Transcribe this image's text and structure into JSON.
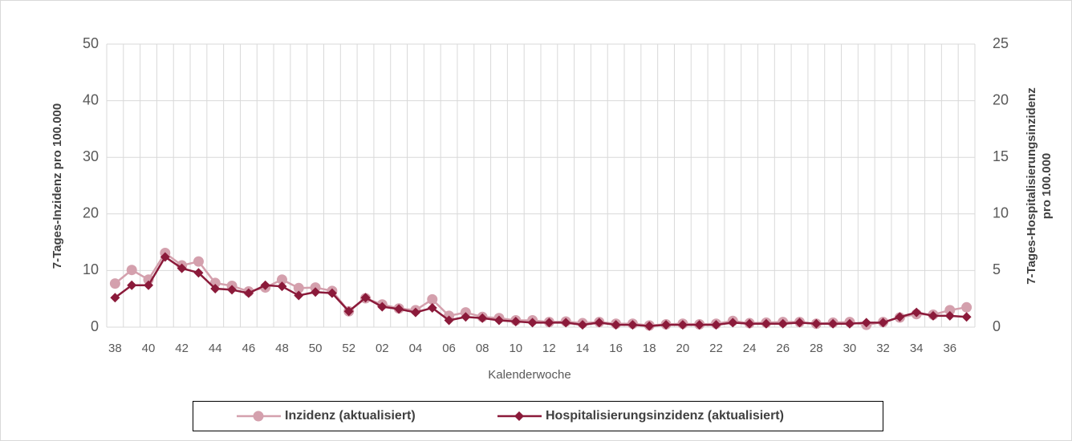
{
  "chart_data": {
    "type": "line",
    "xlabel": "Kalenderwoche",
    "ylabel": "7-Tages-Inzidenz pro 100.000",
    "y2label": [
      "7-Tages-Hospitalisierungsinzidenz",
      "pro 100.000"
    ],
    "categories": [
      "38",
      null,
      "40",
      null,
      "42",
      null,
      "44",
      null,
      "46",
      null,
      "48",
      null,
      "50",
      null,
      "52",
      null,
      "02",
      null,
      "04",
      null,
      "06",
      null,
      "08",
      null,
      "10",
      null,
      "12",
      null,
      "14",
      null,
      "16",
      null,
      "18",
      null,
      "20",
      null,
      "22",
      null,
      "24",
      null,
      "26",
      null,
      "28",
      null,
      "30",
      null,
      "32",
      null,
      "34",
      null,
      "36",
      null
    ],
    "series": [
      {
        "name": "Inzidenz (aktualisiert)",
        "color": "#d4a0ad",
        "marker": "circle",
        "values": [
          7.7,
          10.1,
          8.4,
          13.1,
          10.9,
          11.6,
          7.8,
          7.3,
          6.3,
          7.0,
          8.4,
          6.9,
          7.0,
          6.4,
          2.8,
          5.1,
          4.0,
          3.3,
          3.0,
          4.9,
          2.0,
          2.6,
          1.8,
          1.6,
          1.2,
          1.2,
          0.9,
          1.0,
          0.7,
          0.9,
          0.6,
          0.6,
          0.3,
          0.5,
          0.6,
          0.5,
          0.6,
          1.1,
          0.7,
          0.8,
          0.9,
          0.9,
          0.6,
          0.8,
          0.9,
          0.4,
          0.9,
          1.7,
          2.3,
          2.2,
          3.0,
          3.5
        ]
      },
      {
        "name": "Hospitalisierungsinzidenz (aktualisiert)",
        "color": "#8b1a3a",
        "marker": "diamond",
        "axis": "y2",
        "values": [
          2.6,
          3.7,
          3.7,
          6.2,
          5.2,
          4.8,
          3.4,
          3.3,
          3.0,
          3.7,
          3.6,
          2.8,
          3.1,
          3.0,
          1.4,
          2.6,
          1.8,
          1.6,
          1.3,
          1.7,
          0.6,
          0.9,
          0.8,
          0.6,
          0.5,
          0.4,
          0.4,
          0.4,
          0.2,
          0.4,
          0.2,
          0.2,
          0.1,
          0.2,
          0.2,
          0.2,
          0.2,
          0.4,
          0.3,
          0.3,
          0.3,
          0.4,
          0.3,
          0.3,
          0.3,
          0.4,
          0.4,
          0.9,
          1.3,
          1.0,
          1.0,
          0.9
        ]
      }
    ],
    "ylim": [
      0,
      50
    ],
    "yticks": [
      0,
      10,
      20,
      30,
      40,
      50
    ],
    "y2lim": [
      0,
      25
    ],
    "y2ticks": [
      0,
      5,
      10,
      15,
      20,
      25
    ],
    "grid": true,
    "legend": "bottom"
  }
}
